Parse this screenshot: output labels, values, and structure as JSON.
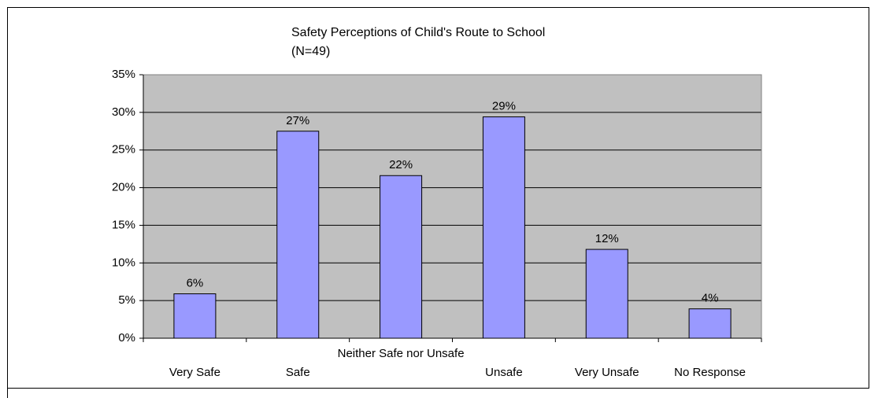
{
  "chart_data": {
    "type": "bar",
    "title": "Safety Perceptions of Child's Route to School",
    "subtitle": "(N=49)",
    "categories": [
      "Very Safe",
      "Safe",
      "Neither Safe nor Unsafe",
      "Unsafe",
      "Very Unsafe",
      "No Response"
    ],
    "values": [
      5.9,
      27.5,
      21.6,
      29.4,
      11.8,
      3.9
    ],
    "value_labels": [
      "6%",
      "27%",
      "22%",
      "29%",
      "12%",
      "4%"
    ],
    "color": "#9999ff",
    "ylim": [
      0,
      35
    ],
    "yticks": [
      {
        "value": 0,
        "label": "0%"
      },
      {
        "value": 5,
        "label": "5%"
      },
      {
        "value": 10,
        "label": "10%"
      },
      {
        "value": 15,
        "label": "15%"
      },
      {
        "value": 20,
        "label": "20%"
      },
      {
        "value": 25,
        "label": "25%"
      },
      {
        "value": 30,
        "label": "30%"
      },
      {
        "value": 35,
        "label": "35%"
      }
    ],
    "grid": true
  }
}
